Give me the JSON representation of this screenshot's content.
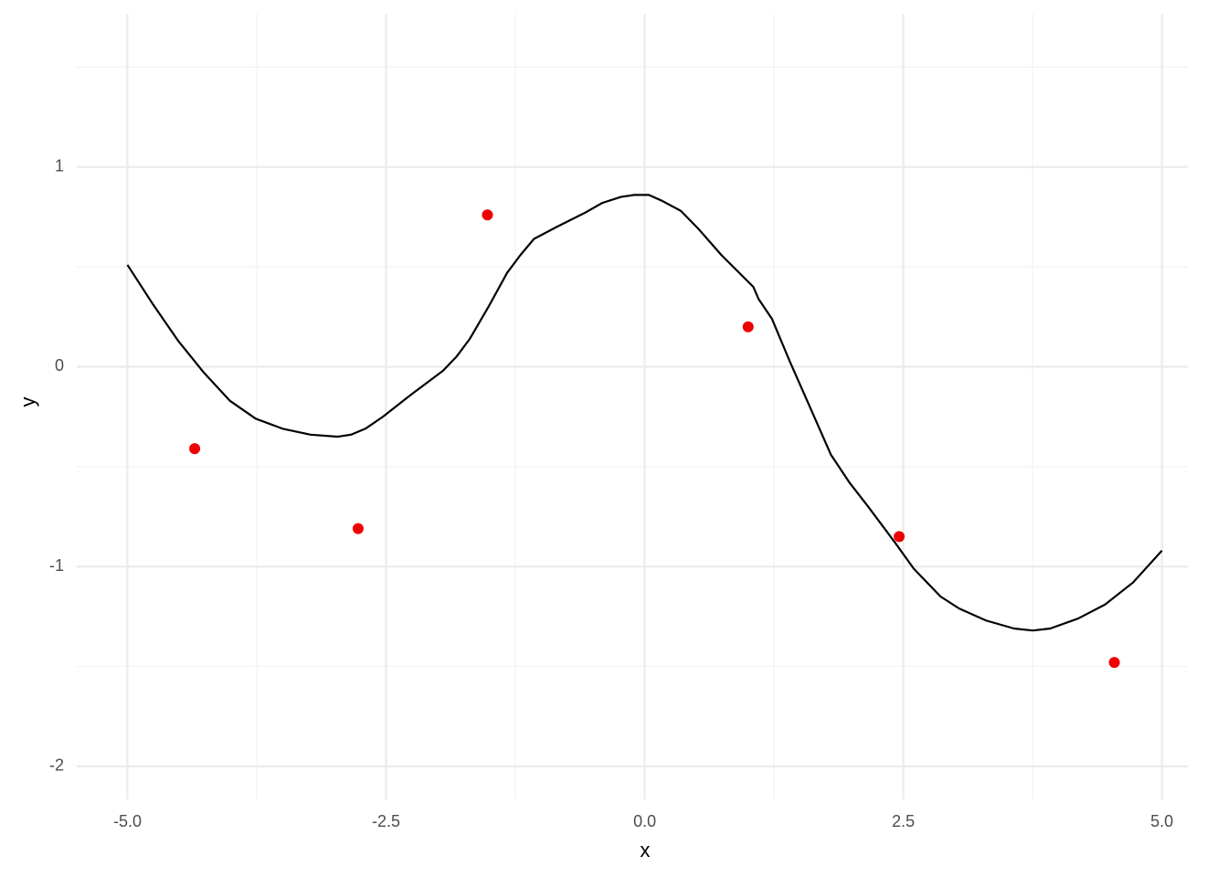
{
  "chart_data": {
    "type": "line",
    "x_label": "x",
    "y_label": "y",
    "xlim": [
      -5.49,
      5.25
    ],
    "ylim": [
      -2.165,
      1.767
    ],
    "xticks": [
      {
        "value": -5,
        "label": "-5.0"
      },
      -2.5,
      {
        "value": 0,
        "label": "0.0"
      },
      2.5,
      {
        "value": 5,
        "label": "5.0"
      }
    ],
    "yticks": [
      -2,
      -1,
      0,
      1
    ],
    "x_minor_grid": [
      -3.75,
      -1.25,
      1.25,
      3.75
    ],
    "y_minor_grid": [
      -1.5,
      -0.5,
      0.5,
      1.5
    ],
    "grid": true,
    "series": [
      {
        "type": "line",
        "color": "#000000",
        "x": [
          -5.0,
          -4.75,
          -4.51,
          -4.26,
          -4.01,
          -3.76,
          -3.5,
          -3.23,
          -2.97,
          -2.84,
          -2.7,
          -2.53,
          -2.26,
          -1.95,
          -1.82,
          -1.69,
          -1.51,
          -1.33,
          -1.2,
          -1.07,
          -0.85,
          -0.58,
          -0.41,
          -0.23,
          -0.1,
          0.04,
          0.17,
          0.35,
          0.52,
          0.74,
          1.05,
          1.1,
          1.23,
          1.4,
          1.63,
          1.8,
          1.98,
          2.16,
          2.42,
          2.6,
          2.86,
          3.04,
          3.3,
          3.57,
          3.75,
          3.92,
          4.19,
          4.45,
          4.72,
          5.0
        ],
        "values": [
          0.51,
          0.31,
          0.13,
          -0.03,
          -0.17,
          -0.26,
          -0.31,
          -0.34,
          -0.35,
          -0.34,
          -0.31,
          -0.25,
          -0.14,
          -0.02,
          0.05,
          0.14,
          0.3,
          0.47,
          0.56,
          0.64,
          0.7,
          0.77,
          0.82,
          0.85,
          0.86,
          0.86,
          0.83,
          0.78,
          0.69,
          0.56,
          0.4,
          0.34,
          0.24,
          0.03,
          -0.24,
          -0.44,
          -0.58,
          -0.7,
          -0.88,
          -1.01,
          -1.15,
          -1.21,
          -1.27,
          -1.31,
          -1.32,
          -1.31,
          -1.26,
          -1.19,
          -1.08,
          -0.92
        ]
      },
      {
        "type": "scatter",
        "color": "#ee0000",
        "x": [
          -4.35,
          -2.77,
          -1.52,
          1.0,
          2.46,
          4.54
        ],
        "values": [
          -0.41,
          -0.81,
          0.76,
          0.2,
          -0.85,
          -1.48
        ]
      }
    ]
  }
}
